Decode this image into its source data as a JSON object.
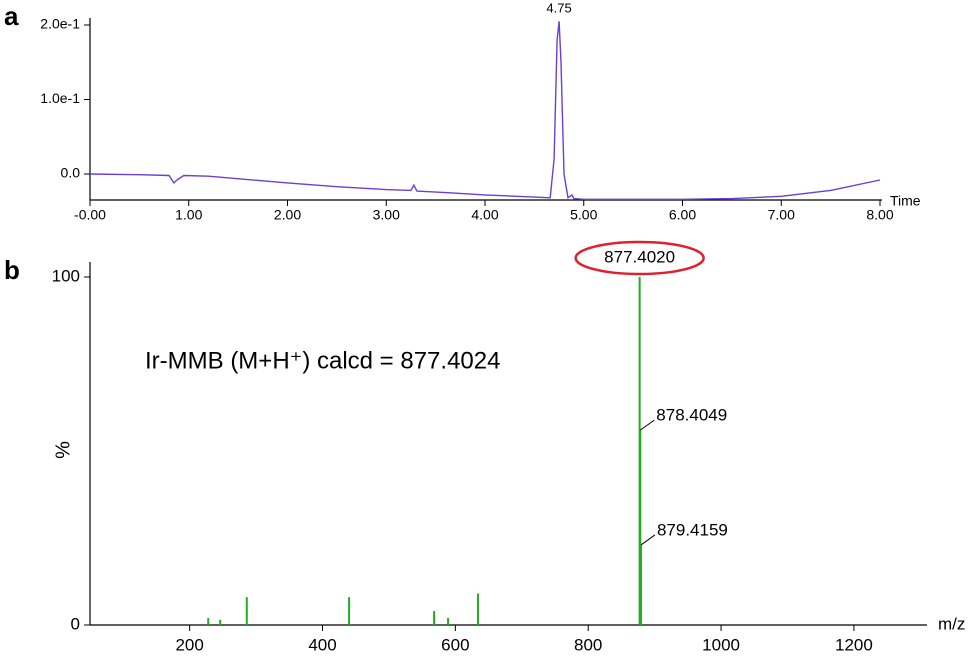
{
  "chart_data": [
    {
      "type": "line",
      "panel_label": "a",
      "xlabel": "Time",
      "x": [
        0,
        0.5,
        0.8,
        0.85,
        0.88,
        0.95,
        1.2,
        2,
        2.5,
        3,
        3.25,
        3.28,
        3.31,
        3.6,
        4,
        4.5,
        4.66,
        4.7,
        4.73,
        4.75,
        4.77,
        4.8,
        4.84,
        4.88,
        4.9,
        5,
        5.5,
        6,
        6.5,
        7,
        7.5,
        8
      ],
      "series": [
        {
          "color": "#6a3fd8",
          "values": [
            0,
            -0.001,
            -0.002,
            -0.012,
            -0.008,
            -0.002,
            -0.003,
            -0.012,
            -0.017,
            -0.021,
            -0.022,
            -0.015,
            -0.023,
            -0.025,
            -0.028,
            -0.031,
            -0.032,
            0.02,
            0.18,
            0.205,
            0.15,
            0.0,
            -0.032,
            -0.028,
            -0.033,
            -0.034,
            -0.034,
            -0.034,
            -0.033,
            -0.03,
            -0.022,
            -0.008
          ]
        }
      ],
      "annotations": [
        {
          "text": "4.75",
          "x": 4.75
        }
      ],
      "xlim": [
        0,
        8
      ],
      "ylim": [
        -0.035,
        0.21
      ],
      "xticks": [
        {
          "value": 0,
          "label": "-0.00"
        },
        {
          "value": 1,
          "label": "1.00"
        },
        {
          "value": 2,
          "label": "2.00"
        },
        {
          "value": 3,
          "label": "3.00"
        },
        {
          "value": 4,
          "label": "4.00"
        },
        {
          "value": 5,
          "label": "5.00"
        },
        {
          "value": 6,
          "label": "6.00"
        },
        {
          "value": 7,
          "label": "7.00"
        },
        {
          "value": 8,
          "label": "8.00"
        }
      ],
      "yticks": [
        {
          "value": 0,
          "label": "0.0"
        },
        {
          "value": 0.1,
          "label": "1.0e-1"
        },
        {
          "value": 0.2,
          "label": "2.0e-1"
        }
      ]
    },
    {
      "type": "stem",
      "panel_label": "b",
      "xlabel": "m/z",
      "ylabel": "%",
      "x": [
        228,
        246,
        286,
        440,
        568,
        589,
        634,
        877.402,
        878.4049,
        879.4159
      ],
      "series": [
        {
          "color": "#1fae1f",
          "values": [
            2,
            1.5,
            8,
            8,
            4,
            2,
            9,
            100,
            56,
            23
          ]
        }
      ],
      "annotations": [
        {
          "text": "877.4020",
          "x": 877.402,
          "circled": true
        },
        {
          "text": "878.4049",
          "x": 878.4049
        },
        {
          "text": "879.4159",
          "x": 879.4159
        }
      ],
      "note": "Ir-MMB (M+H⁺) calcd = 877.4024",
      "xlim": [
        50,
        1310
      ],
      "ylim": [
        0,
        100
      ],
      "xticks": [
        200,
        400,
        600,
        800,
        1000,
        1200
      ],
      "yticks": [
        0,
        100
      ]
    }
  ]
}
